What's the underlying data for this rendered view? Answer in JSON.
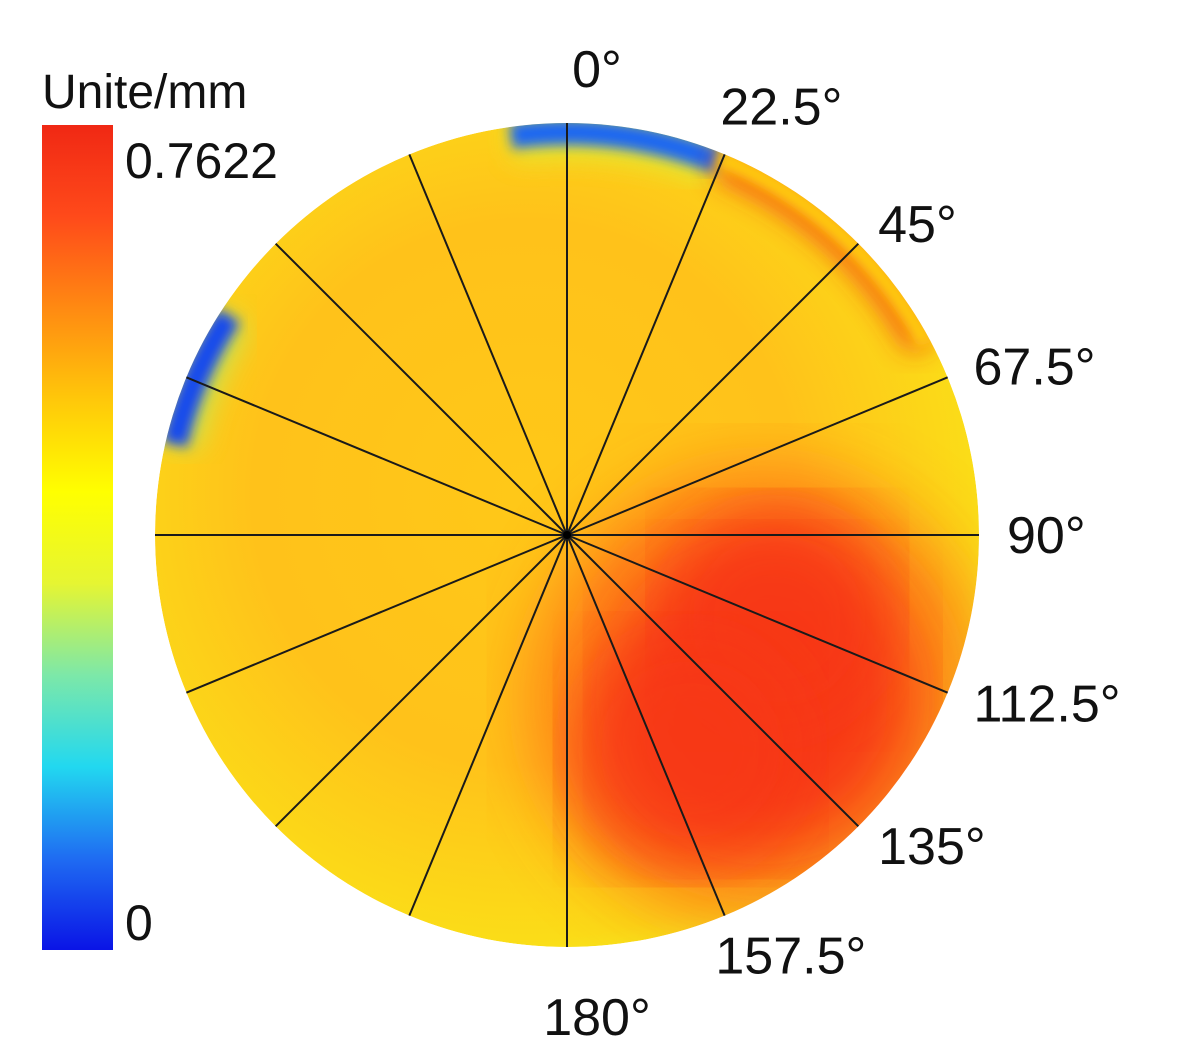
{
  "chart_data": {
    "type": "heatmap",
    "subtype": "polar",
    "colorbar": {
      "unit": "Unite/mm",
      "min": 0,
      "max": 0.7622,
      "min_label": "0",
      "max_label": "0.7622",
      "colormap": [
        "#0a14e6",
        "#1f6cf2",
        "#22d8f0",
        "#7de8a8",
        "#e6f532",
        "#ffff00",
        "#ffc80a",
        "#ff8a12",
        "#ff4a1a",
        "#f02814"
      ]
    },
    "angle_labels": [
      "0°",
      "22.5°",
      "45°",
      "67.5°",
      "90°",
      "112.5°",
      "135°",
      "157.5°",
      "180°"
    ],
    "radial_lines_deg": [
      0,
      22.5,
      45,
      67.5,
      90,
      112.5,
      135,
      157.5,
      180,
      202.5,
      225,
      247.5,
      270,
      292.5,
      315,
      337.5
    ],
    "low_regions": [
      {
        "sector_deg": [
          -8,
          22
        ],
        "value": 0.08
      },
      {
        "sector_deg": [
          283,
          303
        ],
        "value": 0.05
      },
      {
        "sector_deg": [
          22,
          62
        ],
        "value": 0.5
      }
    ],
    "high_regions": [
      {
        "sector_deg": [
          95,
          165
        ],
        "value": 0.7622
      }
    ],
    "typical_value": 0.55
  }
}
